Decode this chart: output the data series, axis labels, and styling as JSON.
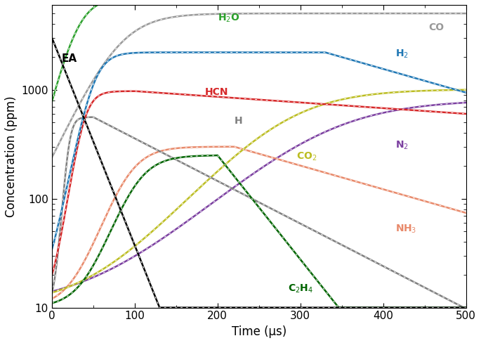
{
  "xlabel": "Time (μs)",
  "ylabel": "Concentration (ppm)",
  "xlim": [
    0,
    500
  ],
  "ylim": [
    10,
    6000
  ],
  "species": {
    "EA": {
      "color": "#000000"
    },
    "H2O": {
      "color": "#2ca02c"
    },
    "CO": {
      "color": "#999999"
    },
    "H2": {
      "color": "#1f77b4"
    },
    "HCN": {
      "color": "#d62728"
    },
    "H": {
      "color": "#7f7f7f"
    },
    "CO2": {
      "color": "#bcbd22"
    },
    "N2": {
      "color": "#7b3fa0"
    },
    "C2H4": {
      "color": "#006400"
    },
    "NH3": {
      "color": "#e8896a"
    }
  }
}
